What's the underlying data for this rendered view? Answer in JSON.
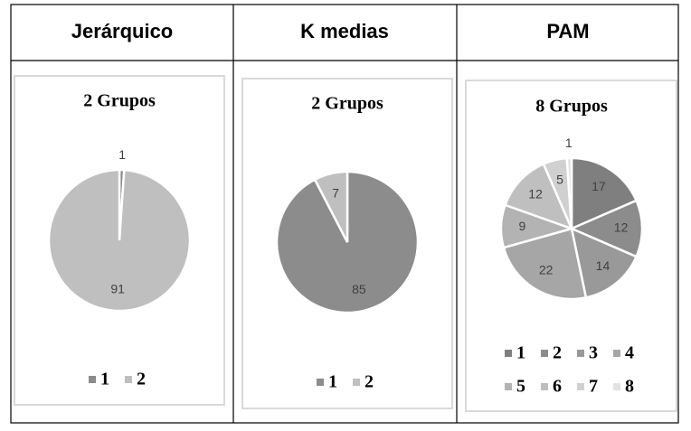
{
  "table": {
    "headers": [
      "Jerárquico",
      "K medias",
      "PAM"
    ]
  },
  "chart_data": [
    {
      "type": "pie",
      "title": "2 Grupos",
      "categories": [
        "1",
        "2"
      ],
      "values": [
        1,
        91
      ],
      "colors": [
        "#8c8c8c",
        "#bfbfbf"
      ]
    },
    {
      "type": "pie",
      "title": "2 Grupos",
      "categories": [
        "1",
        "2"
      ],
      "values": [
        85,
        7
      ],
      "colors": [
        "#8c8c8c",
        "#bfbfbf"
      ]
    },
    {
      "type": "pie",
      "title": "8 Grupos",
      "categories": [
        "1",
        "2",
        "3",
        "4",
        "5",
        "6",
        "7",
        "8"
      ],
      "values": [
        17,
        12,
        14,
        22,
        9,
        12,
        5,
        1
      ],
      "colors": [
        "#7f7f7f",
        "#8c8c8c",
        "#999999",
        "#a6a6a6",
        "#b3b3b3",
        "#bfbfbf",
        "#d0d0d0",
        "#e2e2e2"
      ]
    }
  ]
}
